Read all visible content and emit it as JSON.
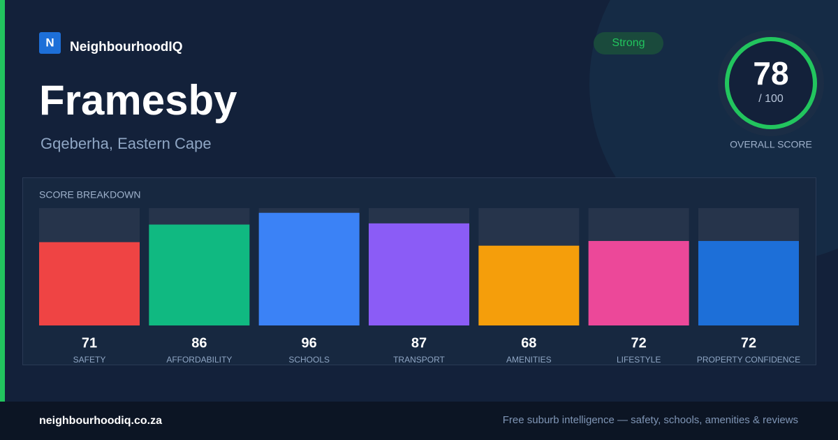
{
  "brand": {
    "logo": "N",
    "name": "NeighbourhoodIQ"
  },
  "suburb": {
    "name": "Framesby",
    "location": "Gqeberha, Eastern Cape"
  },
  "badge": "Strong",
  "score": {
    "value": 78,
    "max": {
      "value": 100,
      "label": "/ 100"
    },
    "label": "OVERALL SCORE"
  },
  "breakdown": {
    "title": "SCORE BREAKDOWN",
    "items": [
      {
        "label": "SAFETY",
        "value": 71,
        "color": "#ef4444"
      },
      {
        "label": "AFFORDABILITY",
        "value": 86,
        "color": "#10b981"
      },
      {
        "label": "SCHOOLS",
        "value": 96,
        "color": "#3b82f6"
      },
      {
        "label": "TRANSPORT",
        "value": 87,
        "color": "#8b5cf6"
      },
      {
        "label": "AMENITIES",
        "value": 68,
        "color": "#f59e0b"
      },
      {
        "label": "LIFESTYLE",
        "value": 72,
        "color": "#ec4899"
      },
      {
        "label": "PROPERTY CONFIDENCE",
        "value": 72,
        "color": "#1d6fd8"
      }
    ]
  },
  "footer": {
    "site": "neighbourhoodiq.co.za",
    "tagline": "Free suburb intelligence — safety, schools, amenities & reviews"
  }
}
